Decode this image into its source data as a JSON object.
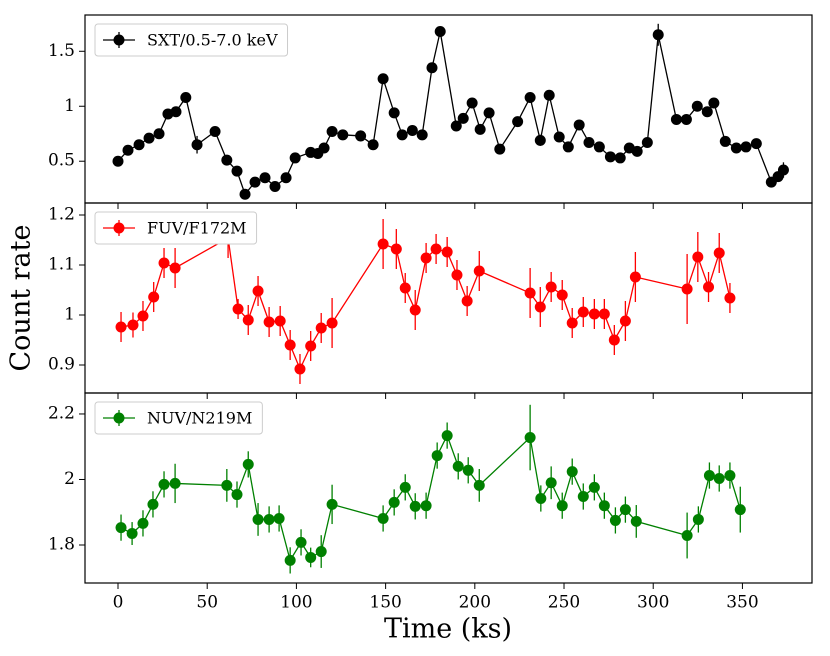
{
  "chart_data": [
    {
      "type": "line",
      "xlim": [
        -18.5,
        389
      ],
      "xticks": [
        0,
        50,
        100,
        150,
        200,
        250,
        300,
        350
      ],
      "ylim": [
        0.12,
        1.83
      ],
      "yticks": [
        0.5,
        1.0,
        1.5
      ],
      "legend": "upper left",
      "series": [
        {
          "name": "SXT/0.5-7.0 keV",
          "color": "#000000",
          "x": [
            0,
            5.6,
            11.8,
            17.4,
            23,
            28,
            32.5,
            38,
            44.3,
            54.4,
            61,
            66.7,
            71.2,
            76.8,
            82.4,
            88,
            94.2,
            99.3,
            108,
            112,
            115.5,
            120,
            126,
            136,
            143,
            148.6,
            154.8,
            159.3,
            165,
            170.5,
            176,
            180.6,
            189.6,
            193.5,
            198.5,
            203,
            208,
            214,
            224,
            231,
            236.7,
            241.7,
            247.3,
            252.4,
            258.5,
            264,
            269.8,
            276,
            281.5,
            286.6,
            291,
            296.7,
            302.8,
            313,
            318.6,
            324.7,
            330.3,
            334,
            340.4,
            346.6,
            352,
            357.8,
            366.2,
            370,
            373
          ],
          "values": [
            0.5,
            0.6,
            0.65,
            0.71,
            0.75,
            0.93,
            0.95,
            1.08,
            0.65,
            0.77,
            0.51,
            0.41,
            0.2,
            0.31,
            0.35,
            0.27,
            0.35,
            0.53,
            0.58,
            0.57,
            0.62,
            0.77,
            0.74,
            0.73,
            0.65,
            1.25,
            0.94,
            0.74,
            0.78,
            0.74,
            1.35,
            1.68,
            0.82,
            0.89,
            1.03,
            0.79,
            0.94,
            0.61,
            0.86,
            1.08,
            0.69,
            1.1,
            0.72,
            0.63,
            0.83,
            0.67,
            0.63,
            0.54,
            0.53,
            0.62,
            0.59,
            0.67,
            1.65,
            0.88,
            0.88,
            1.0,
            0.95,
            1.03,
            0.68,
            0.62,
            0.63,
            0.66,
            0.31,
            0.36,
            0.42
          ],
          "errors": [
            0.03,
            0.03,
            0.03,
            0.03,
            0.03,
            0.03,
            0.03,
            0.03,
            0.08,
            0.03,
            0.03,
            0.03,
            0.04,
            0.03,
            0.03,
            0.03,
            0.03,
            0.03,
            0.03,
            0.03,
            0.03,
            0.03,
            0.03,
            0.05,
            0.03,
            0.04,
            0.03,
            0.03,
            0.03,
            0.03,
            0.04,
            0.03,
            0.03,
            0.03,
            0.03,
            0.03,
            0.03,
            0.03,
            0.04,
            0.03,
            0.05,
            0.04,
            0.03,
            0.03,
            0.03,
            0.03,
            0.03,
            0.03,
            0.03,
            0.03,
            0.03,
            0.03,
            0.1,
            0.03,
            0.03,
            0.03,
            0.03,
            0.03,
            0.03,
            0.03,
            0.03,
            0.03,
            0.04,
            0.04,
            0.07
          ]
        }
      ]
    },
    {
      "type": "line",
      "xlim": [
        -18.5,
        389
      ],
      "xticks": [
        0,
        50,
        100,
        150,
        200,
        250,
        300,
        350
      ],
      "ylim": [
        0.844,
        1.224
      ],
      "yticks": [
        0.9,
        1.0,
        1.1,
        1.2
      ],
      "ylabel": "Count rate",
      "legend": "upper left",
      "series": [
        {
          "name": "FUV/F172M",
          "color": "#ff0000",
          "x": [
            1.7,
            8.4,
            14,
            20,
            25.8,
            32,
            61.7,
            67.3,
            73,
            78.5,
            84.7,
            90.9,
            96.5,
            102,
            108,
            113.9,
            120,
            148.6,
            156,
            161,
            166.6,
            172.7,
            178.3,
            184.5,
            190,
            195.7,
            202.5,
            231,
            236.7,
            242.8,
            249,
            254.6,
            260.8,
            267,
            272.6,
            278.2,
            284.4,
            290,
            319,
            325,
            331,
            337,
            343
          ],
          "values": [
            0.976,
            0.98,
            0.998,
            1.036,
            1.104,
            1.094,
            1.154,
            1.012,
            0.99,
            1.048,
            0.986,
            0.988,
            0.94,
            0.892,
            0.938,
            0.974,
            0.984,
            1.142,
            1.132,
            1.054,
            1.01,
            1.114,
            1.132,
            1.126,
            1.08,
            1.028,
            1.088,
            1.044,
            1.016,
            1.056,
            1.04,
            0.984,
            1.006,
            1.002,
            1.002,
            0.95,
            0.988,
            1.076,
            1.052,
            1.116,
            1.056,
            1.124,
            1.034
          ],
          "errors": [
            0.03,
            0.025,
            0.03,
            0.03,
            0.03,
            0.04,
            0.04,
            0.02,
            0.03,
            0.03,
            0.03,
            0.03,
            0.03,
            0.03,
            0.03,
            0.03,
            0.05,
            0.05,
            0.04,
            0.03,
            0.04,
            0.03,
            0.03,
            0.03,
            0.03,
            0.03,
            0.04,
            0.05,
            0.04,
            0.03,
            0.03,
            0.03,
            0.03,
            0.03,
            0.03,
            0.03,
            0.04,
            0.05,
            0.07,
            0.05,
            0.03,
            0.04,
            0.03
          ]
        }
      ]
    },
    {
      "type": "line",
      "xlim": [
        -18.5,
        389
      ],
      "xticks": [
        0,
        50,
        100,
        150,
        200,
        250,
        300,
        350
      ],
      "ylim": [
        1.684,
        2.264
      ],
      "yticks": [
        1.8,
        2.0,
        2.2
      ],
      "xlabel": "Time (ks)",
      "legend": "upper left",
      "series": [
        {
          "name": "NUV/N219M",
          "color": "#008000",
          "x": [
            1.7,
            7.9,
            14,
            19.6,
            25.8,
            32,
            61,
            66.7,
            73,
            78.5,
            84.7,
            90.3,
            96.5,
            102.6,
            108,
            113.9,
            120,
            148.6,
            154.8,
            161,
            166.6,
            172.7,
            178.9,
            184.5,
            190.7,
            196.3,
            202.5,
            231,
            237,
            242.8,
            249,
            254.6,
            260.8,
            267,
            272.6,
            278.8,
            284.4,
            290.5,
            319,
            325.3,
            331.5,
            337,
            343,
            348.8
          ],
          "values": [
            1.853,
            1.835,
            1.866,
            1.924,
            1.985,
            1.988,
            1.982,
            1.954,
            2.046,
            1.878,
            1.878,
            1.881,
            1.753,
            1.808,
            1.762,
            1.78,
            1.924,
            1.881,
            1.93,
            1.976,
            1.918,
            1.92,
            2.073,
            2.134,
            2.04,
            2.028,
            1.982,
            2.128,
            1.942,
            1.99,
            1.92,
            2.024,
            1.948,
            1.976,
            1.92,
            1.875,
            1.908,
            1.872,
            1.829,
            1.878,
            2.012,
            2.003,
            2.012,
            1.908
          ],
          "errors": [
            0.04,
            0.035,
            0.04,
            0.04,
            0.04,
            0.06,
            0.05,
            0.04,
            0.04,
            0.05,
            0.04,
            0.04,
            0.04,
            0.04,
            0.03,
            0.05,
            0.06,
            0.04,
            0.04,
            0.04,
            0.04,
            0.04,
            0.04,
            0.04,
            0.04,
            0.04,
            0.05,
            0.1,
            0.04,
            0.05,
            0.04,
            0.04,
            0.04,
            0.04,
            0.04,
            0.04,
            0.04,
            0.05,
            0.07,
            0.04,
            0.04,
            0.04,
            0.04,
            0.07
          ]
        }
      ]
    }
  ]
}
